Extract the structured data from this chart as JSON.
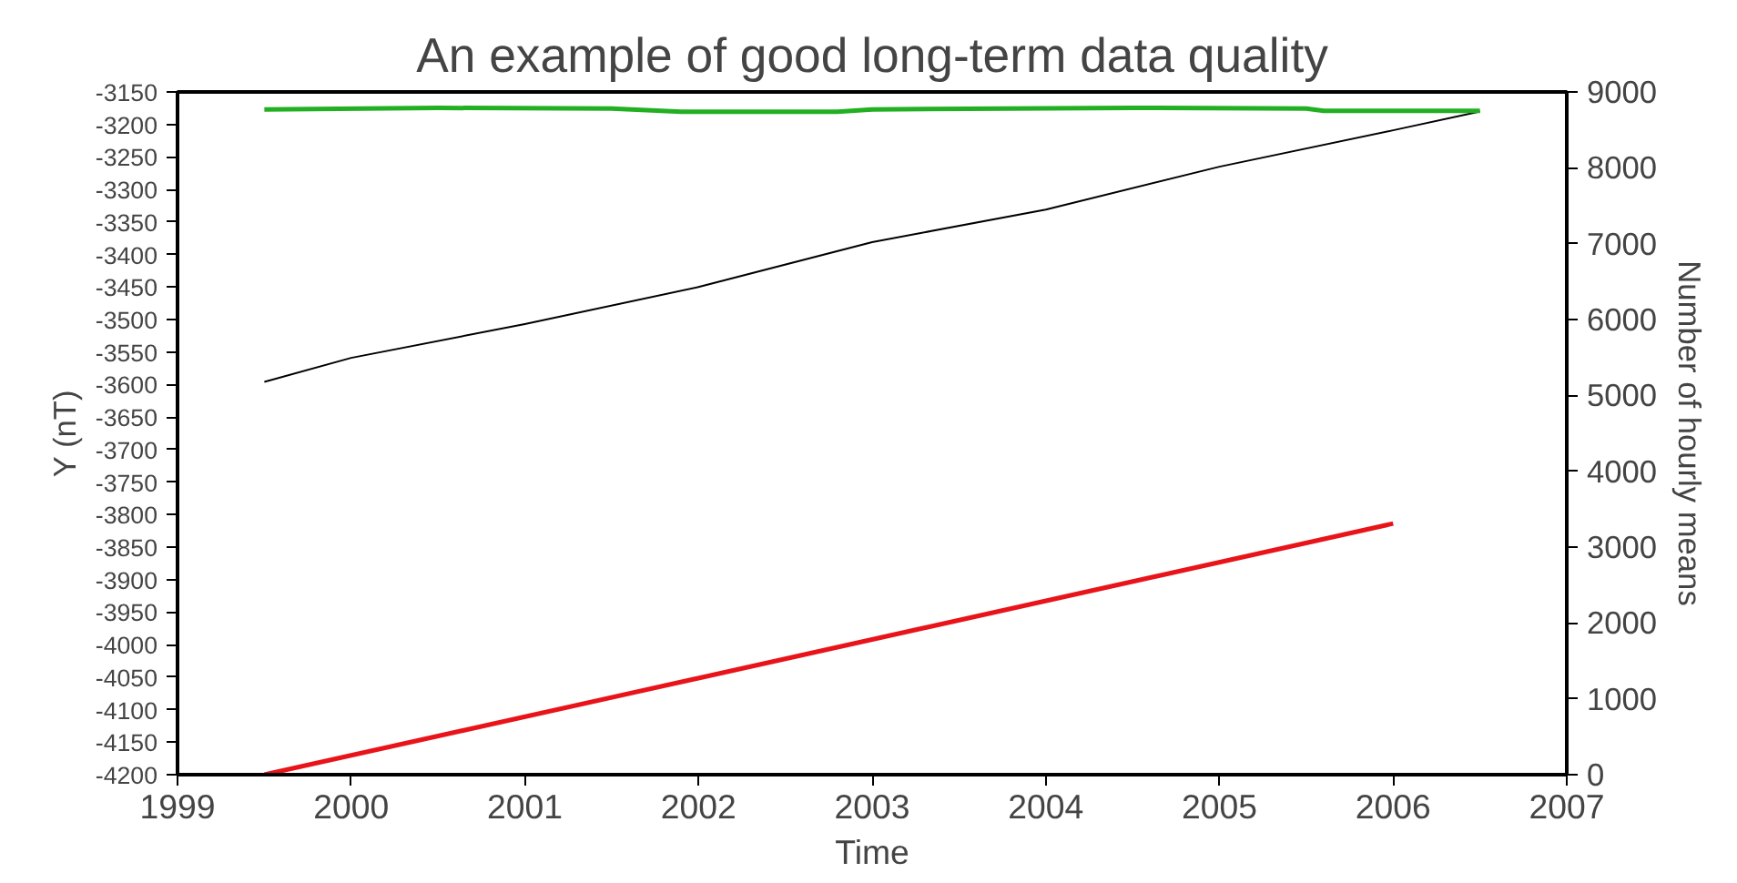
{
  "chart_data": {
    "type": "line",
    "title": "An example of good long-term data quality",
    "xlabel": "Time",
    "ylabel": "Y (nT)",
    "y2label": "Number of hourly means",
    "xlim": [
      1999,
      2007
    ],
    "xticks": [
      1999,
      2000,
      2001,
      2002,
      2003,
      2004,
      2005,
      2006,
      2007
    ],
    "ylim": [
      -4200,
      -3150
    ],
    "yticks": [
      -4200,
      -4150,
      -4100,
      -4050,
      -4000,
      -3950,
      -3900,
      -3850,
      -3800,
      -3750,
      -3700,
      -3650,
      -3600,
      -3550,
      -3500,
      -3450,
      -3400,
      -3350,
      -3300,
      -3250,
      -3200,
      -3150
    ],
    "y2lim": [
      0,
      9000
    ],
    "y2ticks": [
      0,
      1000,
      2000,
      3000,
      4000,
      5000,
      6000,
      7000,
      8000,
      9000
    ],
    "grid": false,
    "series": [
      {
        "color": "#000000",
        "x": [
          1999.5,
          2000,
          2001,
          2002,
          2003,
          2004,
          2005,
          2006,
          2006.5
        ],
        "values": [
          -3596,
          -3559,
          -3507,
          -3450,
          -3381,
          -3331,
          -3265,
          -3209,
          -3180
        ]
      },
      {
        "color": "#22b022",
        "axis": "y2",
        "x": [
          1999.5,
          2000.5,
          2001.5,
          2001.9,
          2002.8,
          2003.0,
          2004.5,
          2005.5,
          2005.6,
          2006.5
        ],
        "values": [
          8770,
          8790,
          8780,
          8740,
          8740,
          8770,
          8790,
          8780,
          8750,
          8750
        ]
      },
      {
        "color": "#e8141a",
        "axis": "y2",
        "x": [
          1999.5,
          2006
        ],
        "values": [
          0,
          3310
        ]
      }
    ]
  }
}
